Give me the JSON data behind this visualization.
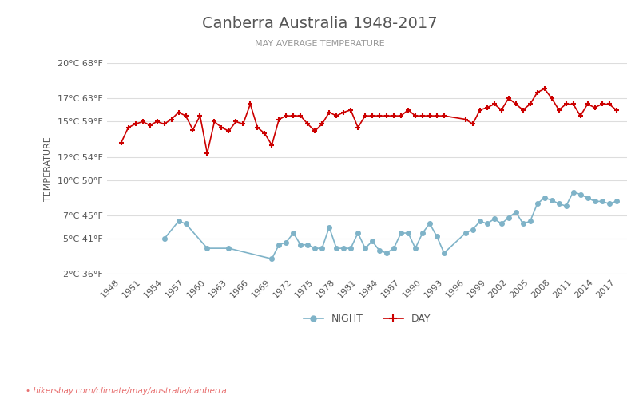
{
  "title": "Canberra Australia 1948-2017",
  "subtitle": "MAY AVERAGE TEMPERATURE",
  "ylabel": "TEMPERATURE",
  "xlabel_url": "hikersbay.com/climate/may/australia/canberra",
  "background_color": "#ffffff",
  "grid_color": "#dddddd",
  "years": [
    1948,
    1949,
    1950,
    1951,
    1952,
    1953,
    1954,
    1955,
    1956,
    1957,
    1958,
    1959,
    1960,
    1961,
    1962,
    1963,
    1964,
    1965,
    1966,
    1967,
    1968,
    1969,
    1970,
    1971,
    1972,
    1973,
    1974,
    1975,
    1976,
    1977,
    1978,
    1979,
    1980,
    1981,
    1982,
    1983,
    1984,
    1985,
    1986,
    1987,
    1988,
    1989,
    1990,
    1991,
    1992,
    1993,
    1996,
    1997,
    1998,
    1999,
    2000,
    2001,
    2002,
    2003,
    2004,
    2005,
    2006,
    2007,
    2008,
    2009,
    2010,
    2011,
    2012,
    2013,
    2014,
    2015,
    2016,
    2017
  ],
  "day_temps": [
    13.2,
    14.5,
    14.8,
    15.0,
    14.7,
    15.0,
    14.8,
    15.2,
    15.8,
    15.5,
    14.3,
    15.5,
    12.3,
    15.0,
    14.5,
    14.2,
    15.0,
    14.8,
    16.5,
    14.5,
    14.0,
    13.0,
    15.2,
    15.5,
    15.5,
    15.5,
    14.8,
    14.2,
    14.8,
    15.8,
    15.5,
    15.8,
    16.0,
    14.5,
    15.5,
    15.5,
    15.5,
    15.5,
    15.5,
    15.5,
    16.0,
    15.5,
    15.5,
    15.5,
    15.5,
    15.5,
    15.2,
    14.8,
    16.0,
    16.2,
    16.5,
    16.0,
    17.0,
    16.5,
    16.0,
    16.5,
    17.5,
    17.8,
    17.0,
    16.0,
    16.5,
    16.5,
    15.5,
    16.5,
    16.2,
    16.5,
    16.5,
    16.0
  ],
  "night_temps": [
    null,
    null,
    null,
    null,
    null,
    null,
    5.0,
    null,
    6.5,
    6.3,
    null,
    null,
    4.2,
    null,
    null,
    4.2,
    null,
    null,
    null,
    null,
    null,
    3.3,
    4.5,
    4.7,
    5.5,
    4.5,
    4.5,
    4.2,
    4.2,
    6.0,
    4.2,
    4.2,
    4.2,
    5.5,
    4.2,
    4.8,
    4.0,
    3.8,
    4.2,
    5.5,
    5.5,
    4.2,
    5.5,
    6.3,
    5.2,
    3.8,
    5.5,
    5.8,
    6.5,
    6.3,
    6.7,
    6.3,
    6.8,
    7.3,
    6.3,
    6.5,
    8.0,
    8.5,
    8.3,
    8.0,
    7.8,
    9.0,
    8.8,
    8.5,
    8.2,
    8.2,
    8.0,
    8.2
  ],
  "day_color": "#cc0000",
  "night_color": "#7fb3c8",
  "ylim": [
    2,
    20
  ],
  "yticks_c": [
    2,
    5,
    7,
    10,
    12,
    15,
    17,
    20
  ],
  "yticks_f": [
    36,
    41,
    45,
    50,
    54,
    59,
    63,
    68
  ],
  "xtick_years": [
    1948,
    1951,
    1954,
    1957,
    1960,
    1963,
    1966,
    1969,
    1972,
    1975,
    1978,
    1981,
    1984,
    1987,
    1990,
    1993,
    1996,
    1999,
    2002,
    2005,
    2008,
    2011,
    2014,
    2017
  ]
}
